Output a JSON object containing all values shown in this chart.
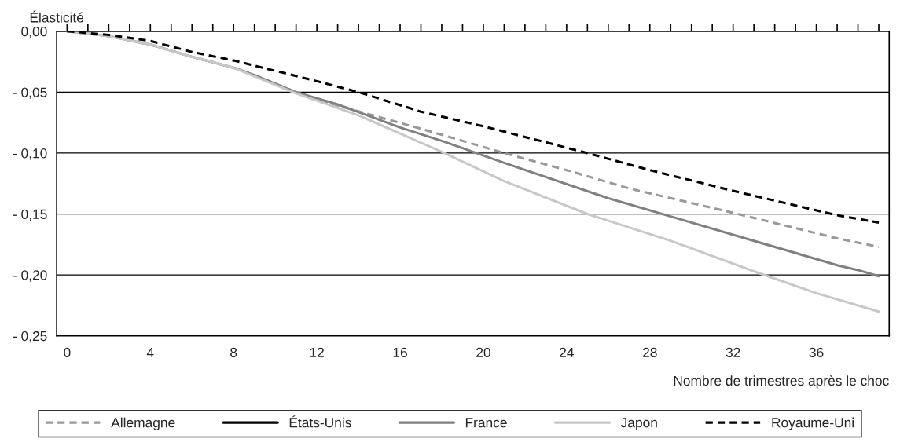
{
  "chart_data": {
    "type": "line",
    "ylabel": "Élasticité",
    "xlabel": "Nombre de trimestres après le choc",
    "xlim": [
      -0.5,
      39.5
    ],
    "xticks": [
      0,
      {
        "value": 1,
        "label": null
      },
      {
        "value": 2,
        "label": null
      },
      {
        "value": 3,
        "label": null
      },
      4,
      {
        "value": 5,
        "label": null
      },
      {
        "value": 6,
        "label": null
      },
      {
        "value": 7,
        "label": null
      },
      8,
      {
        "value": 9,
        "label": null
      },
      {
        "value": 10,
        "label": null
      },
      {
        "value": 11,
        "label": null
      },
      12,
      {
        "value": 13,
        "label": null
      },
      {
        "value": 14,
        "label": null
      },
      {
        "value": 15,
        "label": null
      },
      16,
      {
        "value": 17,
        "label": null
      },
      {
        "value": 18,
        "label": null
      },
      {
        "value": 19,
        "label": null
      },
      20,
      {
        "value": 21,
        "label": null
      },
      {
        "value": 22,
        "label": null
      },
      {
        "value": 23,
        "label": null
      },
      24,
      {
        "value": 25,
        "label": null
      },
      {
        "value": 26,
        "label": null
      },
      {
        "value": 27,
        "label": null
      },
      28,
      {
        "value": 29,
        "label": null
      },
      {
        "value": 30,
        "label": null
      },
      {
        "value": 31,
        "label": null
      },
      32,
      {
        "value": 33,
        "label": null
      },
      {
        "value": 34,
        "label": null
      },
      {
        "value": 35,
        "label": null
      },
      36,
      {
        "value": 37,
        "label": null
      },
      {
        "value": 38,
        "label": null
      },
      {
        "value": 39,
        "label": null
      }
    ],
    "ylim": [
      -0.25,
      0
    ],
    "yticks": [
      {
        "value": 0,
        "label": "0,00"
      },
      {
        "value": -0.05,
        "label": "- 0,05"
      },
      {
        "value": -0.1,
        "label": "- 0,10"
      },
      {
        "value": -0.15,
        "label": "- 0,15"
      },
      {
        "value": -0.2,
        "label": "- 0,20"
      },
      {
        "value": -0.25,
        "label": "- 0,25"
      }
    ],
    "grid": "y",
    "legend": "bottom",
    "series": [
      {
        "name": "Allemagne",
        "color": "#999999",
        "line_style": "dashed",
        "x": [
          0,
          2,
          4,
          6,
          8,
          9,
          11,
          13,
          17,
          21,
          24,
          27,
          32,
          37,
          39
        ],
        "values": [
          0,
          -0.004,
          -0.011,
          -0.021,
          -0.03,
          -0.036,
          -0.05,
          -0.061,
          -0.08,
          -0.1,
          -0.114,
          -0.129,
          -0.149,
          -0.17,
          -0.177
        ]
      },
      {
        "name": "États-Unis",
        "color": "#000000",
        "line_style": "solid"
      },
      {
        "name": "France",
        "color": "#808080",
        "line_style": "solid",
        "x": [
          0,
          2,
          4,
          6,
          8,
          9,
          11,
          13,
          16,
          18,
          21,
          26,
          29,
          33,
          37,
          38,
          39
        ],
        "values": [
          0,
          -0.004,
          -0.011,
          -0.021,
          -0.03,
          -0.036,
          -0.05,
          -0.06,
          -0.079,
          -0.09,
          -0.108,
          -0.137,
          -0.152,
          -0.172,
          -0.192,
          -0.196,
          -0.201
        ]
      },
      {
        "name": "Japon",
        "color": "#c8c8c8",
        "line_style": "solid",
        "x": [
          0,
          2,
          4,
          6,
          8,
          11,
          14,
          18,
          21,
          25,
          29,
          33,
          36,
          39
        ],
        "values": [
          0,
          -0.004,
          -0.011,
          -0.021,
          -0.03,
          -0.051,
          -0.069,
          -0.099,
          -0.123,
          -0.15,
          -0.172,
          -0.197,
          -0.215,
          -0.23
        ]
      },
      {
        "name": "Royaume-Uni",
        "color": "#000000",
        "line_style": "dashed",
        "x": [
          0,
          2,
          4,
          6,
          8,
          12,
          14,
          17,
          20,
          25,
          28,
          32,
          37,
          39
        ],
        "values": [
          0,
          -0.003,
          -0.008,
          -0.017,
          -0.024,
          -0.041,
          -0.05,
          -0.066,
          -0.078,
          -0.1,
          -0.114,
          -0.131,
          -0.151,
          -0.157
        ]
      }
    ]
  }
}
